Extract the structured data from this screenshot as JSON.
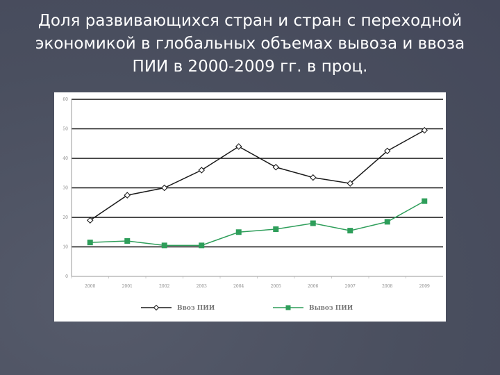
{
  "slide": {
    "title_lines": [
      "Доля развивающихся стран и стран с переходной",
      "экономикой в глобальных объемах вывоза и ввоза",
      "ПИИ в 2000-2009 гг. в проц."
    ]
  },
  "chart_data": {
    "type": "line",
    "title": "",
    "xlabel": "",
    "ylabel": "",
    "x": [
      "2000",
      "2001",
      "2002",
      "2003",
      "2004",
      "2005",
      "2006",
      "2007",
      "2008",
      "2009"
    ],
    "ylim": [
      0,
      60
    ],
    "yticks": [
      "0",
      "10",
      "20",
      "30",
      "40",
      "50",
      "60"
    ],
    "grid": true,
    "legend_position": "bottom",
    "series": [
      {
        "name": "Ввоз ПИИ",
        "color": "#1a1a1a",
        "marker": "diamond-open",
        "values": [
          19,
          27.5,
          30,
          36,
          44,
          37,
          33.5,
          31.5,
          42.5,
          49.5
        ]
      },
      {
        "name": "Вывоз ПИИ",
        "color": "#2e9e5a",
        "marker": "square",
        "values": [
          11.5,
          12,
          10.5,
          10.5,
          15,
          16,
          18,
          15.5,
          18.5,
          25.5
        ]
      }
    ]
  }
}
